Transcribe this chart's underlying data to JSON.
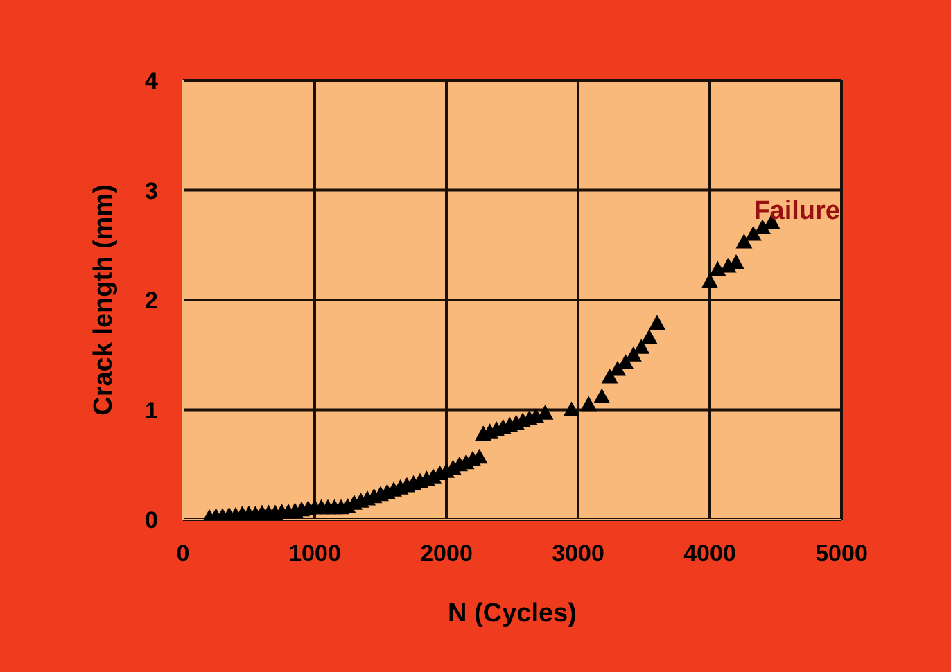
{
  "chart_data": {
    "type": "scatter",
    "xlabel": "N (Cycles)",
    "ylabel": "Crack length (mm)",
    "x": [
      200,
      250,
      300,
      350,
      400,
      450,
      500,
      550,
      600,
      650,
      700,
      750,
      800,
      850,
      900,
      950,
      1000,
      1050,
      1100,
      1150,
      1200,
      1250,
      1300,
      1350,
      1400,
      1450,
      1500,
      1550,
      1600,
      1650,
      1700,
      1750,
      1800,
      1850,
      1900,
      1950,
      2000,
      2050,
      2100,
      2150,
      2200,
      2250,
      2280,
      2330,
      2380,
      2430,
      2480,
      2530,
      2580,
      2630,
      2680,
      2750,
      2950,
      3080,
      3180,
      3240,
      3300,
      3360,
      3420,
      3480,
      3540,
      3600,
      4000,
      4060,
      4140,
      4200,
      4260,
      4330,
      4400,
      4470
    ],
    "series": [
      {
        "color": "#000000",
        "values": [
          0.02,
          0.03,
          0.03,
          0.04,
          0.04,
          0.05,
          0.05,
          0.05,
          0.06,
          0.06,
          0.06,
          0.07,
          0.07,
          0.08,
          0.09,
          0.1,
          0.11,
          0.11,
          0.11,
          0.11,
          0.11,
          0.12,
          0.15,
          0.17,
          0.19,
          0.21,
          0.23,
          0.25,
          0.27,
          0.29,
          0.31,
          0.33,
          0.35,
          0.37,
          0.39,
          0.42,
          0.44,
          0.47,
          0.5,
          0.52,
          0.55,
          0.57,
          0.78,
          0.8,
          0.82,
          0.84,
          0.86,
          0.88,
          0.9,
          0.92,
          0.94,
          0.97,
          1.0,
          1.05,
          1.12,
          1.3,
          1.37,
          1.43,
          1.5,
          1.57,
          1.66,
          1.79,
          2.17,
          2.28,
          2.31,
          2.34,
          2.53,
          2.6,
          2.66,
          2.71
        ]
      }
    ],
    "xlim": [
      0,
      5000
    ],
    "xticks": [
      0,
      1000,
      2000,
      3000,
      4000,
      5000
    ],
    "ylim": [
      0,
      4
    ],
    "yticks": [
      0,
      1,
      2,
      3,
      4
    ],
    "grid": true,
    "marker": "triangle",
    "annotations": [
      "Failure"
    ]
  }
}
